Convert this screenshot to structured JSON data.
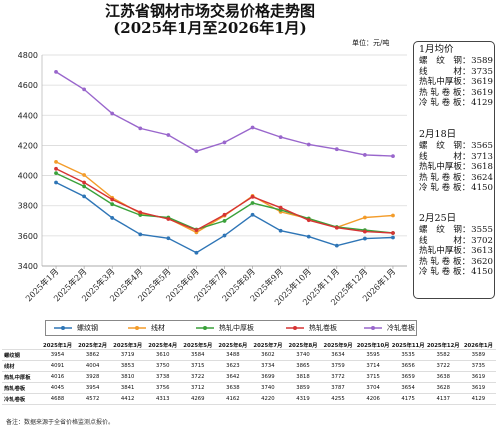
{
  "title_line1": "江苏省钢材市场交易价格走势图",
  "title_line2": "(2025年1月至2026年1月)",
  "unit_label": "单位：元/吨",
  "chart_data": {
    "type": "line",
    "x": [
      "2025年1月",
      "2025年2月",
      "2025年3月",
      "2025年4月",
      "2025年5月",
      "2025年6月",
      "2025年7月",
      "2025年8月",
      "2025年9月",
      "2025年10月",
      "2025年11月",
      "2025年12月",
      "2026年1月"
    ],
    "ylim": [
      3400,
      4800
    ],
    "yticks": [
      3400,
      3600,
      3800,
      4000,
      4200,
      4400,
      4600,
      4800
    ],
    "grid": true,
    "legend_position": "bottom",
    "series": [
      {
        "name": "螺纹钢",
        "color": "#2e75b6",
        "values": [
          3954,
          3862,
          3719,
          3610,
          3584,
          3488,
          3602,
          3740,
          3634,
          3595,
          3535,
          3582,
          3589
        ]
      },
      {
        "name": "线材",
        "color": "#f39c2a",
        "values": [
          4091,
          4004,
          3853,
          3750,
          3715,
          3623,
          3734,
          3865,
          3759,
          3714,
          3656,
          3722,
          3735
        ]
      },
      {
        "name": "热轧中厚板",
        "color": "#3aa13a",
        "values": [
          4016,
          3928,
          3810,
          3738,
          3722,
          3642,
          3699,
          3818,
          3772,
          3715,
          3659,
          3638,
          3619
        ]
      },
      {
        "name": "热轧卷板",
        "color": "#d63333",
        "values": [
          4045,
          3954,
          3841,
          3756,
          3712,
          3638,
          3740,
          3859,
          3787,
          3704,
          3654,
          3628,
          3619
        ]
      },
      {
        "name": "冷轧卷板",
        "color": "#9966cc",
        "values": [
          4688,
          4572,
          4412,
          4313,
          4269,
          4162,
          4220,
          4319,
          4255,
          4206,
          4175,
          4137,
          4129
        ]
      }
    ]
  },
  "side_panel": [
    {
      "title": "1月均价",
      "rows": [
        {
          "label": "螺　纹　钢：",
          "value": "3589"
        },
        {
          "label": "线　　　材：",
          "value": "3735"
        },
        {
          "label": "热轧中厚板：",
          "value": "3619"
        },
        {
          "label": "热 轧 卷 板：",
          "value": "3619"
        },
        {
          "label": "冷 轧 卷 板：",
          "value": "4129"
        }
      ]
    },
    {
      "title": "2月18日",
      "rows": [
        {
          "label": "螺　纹　钢：",
          "value": "3565"
        },
        {
          "label": "线　　　材：",
          "value": "3713"
        },
        {
          "label": "热轧中厚板：",
          "value": "3618"
        },
        {
          "label": "热 轧 卷 板：",
          "value": "3624"
        },
        {
          "label": "冷 轧 卷 板：",
          "value": "4150"
        }
      ]
    },
    {
      "title": "2月25日",
      "rows": [
        {
          "label": "螺　纹　钢：",
          "value": "3555"
        },
        {
          "label": "线　　　材：",
          "value": "3702"
        },
        {
          "label": "热轧中厚板：",
          "value": "3613"
        },
        {
          "label": "热 轧 卷 板：",
          "value": "3620"
        },
        {
          "label": "冷 轧 卷 板：",
          "value": "4150"
        }
      ]
    }
  ],
  "table": {
    "row_labels": [
      "螺纹钢",
      "线材",
      "热轧中厚板",
      "热轧卷板",
      "冷轧卷板"
    ]
  },
  "note": "备注：数据来源于全省价格监测点报价。"
}
